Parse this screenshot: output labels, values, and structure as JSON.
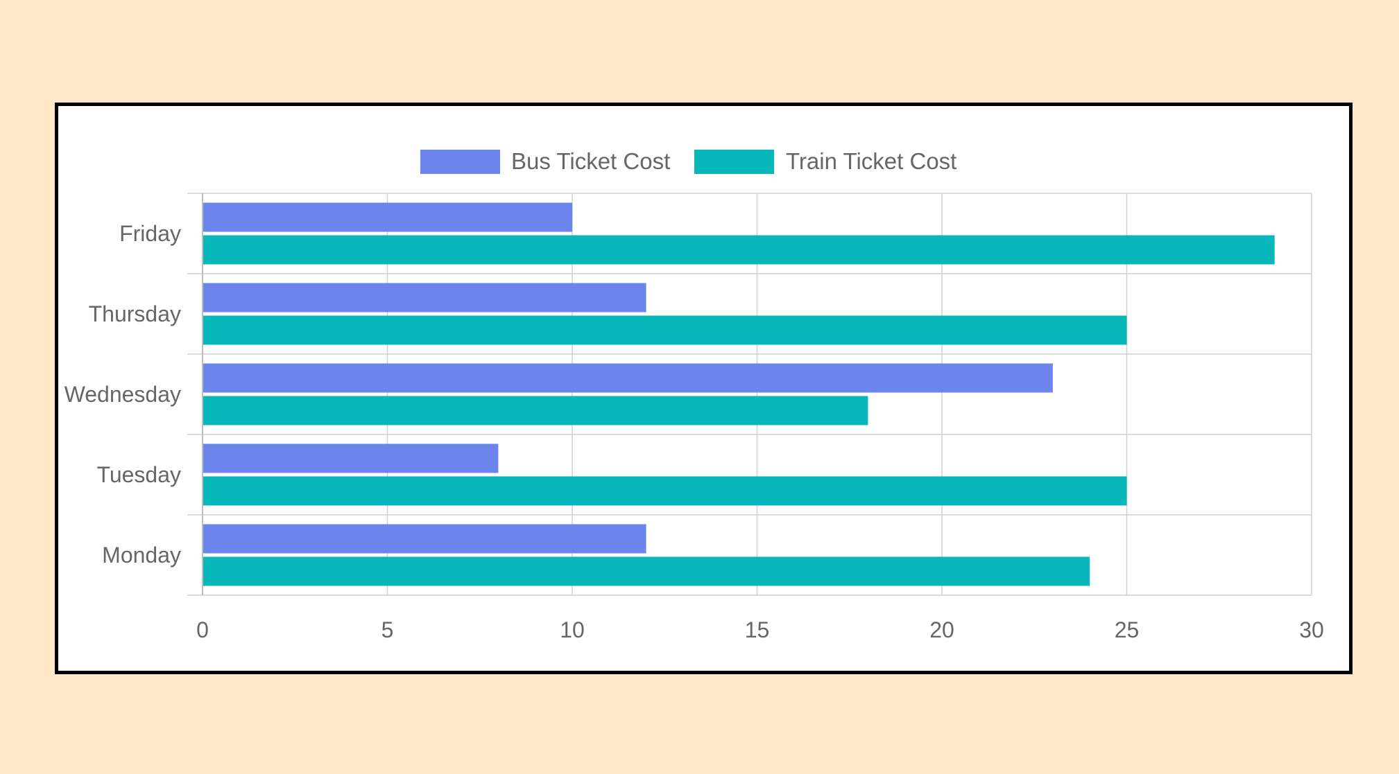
{
  "chart_data": {
    "type": "bar",
    "orientation": "horizontal",
    "categories": [
      "Friday",
      "Thursday",
      "Wednesday",
      "Tuesday",
      "Monday"
    ],
    "series": [
      {
        "name": "Bus Ticket Cost",
        "color": "#6b85ec",
        "values": [
          10,
          12,
          23,
          8,
          12
        ]
      },
      {
        "name": "Train Ticket Cost",
        "color": "#07b7b9",
        "values": [
          29,
          25,
          18,
          25,
          24
        ]
      }
    ],
    "xlim": [
      0,
      30
    ],
    "x_ticks": [
      "0",
      "5",
      "10",
      "15",
      "20",
      "25",
      "30"
    ],
    "grid": true,
    "legend_position": "top-center"
  },
  "colors": {
    "background": "#ffe8c7",
    "panel": "#ffffff",
    "grid": "#d0d0d0",
    "text": "#666666"
  }
}
